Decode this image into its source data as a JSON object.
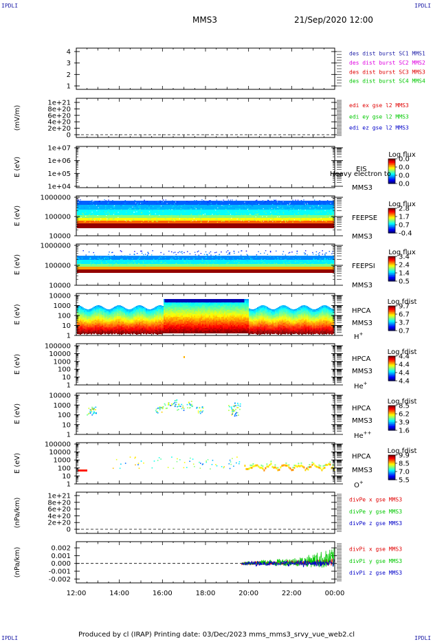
{
  "corner_label": "IPDLI",
  "header": {
    "title": "MMS3",
    "datetime": "21/Sep/2020 12:00"
  },
  "footer": {
    "text": "Produced by cl (IRAP)   Printing date: 03/Dec/2023   mms_mms3_srvy_vue_web2.cl"
  },
  "colors": {
    "red": "#e00000",
    "green": "#00c800",
    "blue": "#0000c8",
    "magenta": "#e000e0",
    "darkblue": "#2020c0"
  },
  "chart_data": [
    {
      "type": "line",
      "panel": "tetrahedron",
      "y_ticks": [
        "1",
        "2",
        "3",
        "4"
      ],
      "ylim": [
        0.7,
        4.3
      ],
      "series": [
        {
          "name": "des dist burst SC1 MMS1",
          "color": "#1a1aa6",
          "values": []
        },
        {
          "name": "des dist burst SC2 MMS2",
          "color": "#e000e0",
          "values": []
        },
        {
          "name": "des dist burst SC3 MMS3",
          "color": "#e00000",
          "values": []
        },
        {
          "name": "des dist burst SC4 MMS4",
          "color": "#00c800",
          "values": []
        }
      ]
    },
    {
      "type": "line",
      "panel": "electric-field",
      "ylabel": "(mV/m)",
      "y_ticks": [
        "1e+21",
        "8e+20",
        "6e+20",
        "4e+20",
        "2e+20",
        "0"
      ],
      "series": [
        {
          "name": "edi ex gse l2 MMS3",
          "color": "#e00000",
          "values": []
        },
        {
          "name": "edi ey gse l2 MMS3",
          "color": "#00c800",
          "values": []
        },
        {
          "name": "edi ez gse l2 MMS3",
          "color": "#0000c8",
          "values": []
        }
      ]
    },
    {
      "type": "heatmap",
      "panel": "EIS",
      "ylabel": "E (eV)",
      "yscale": "log",
      "y_ticks": [
        "1e+07",
        "1e+06",
        "1e+05",
        "1e+04"
      ],
      "right_labels": [
        "EIS",
        "MMS3"
      ],
      "overlay_label": "Heavy electron to",
      "colorbar": {
        "title": "Log flux",
        "ticks": [
          "0.0",
          "0.0",
          "0.0",
          "0.0"
        ]
      }
    },
    {
      "type": "heatmap",
      "panel": "FEEPSE",
      "ylabel": "E (eV)",
      "yscale": "log",
      "y_ticks": [
        "1000000",
        "100000",
        "10000"
      ],
      "right_labels": [
        "FEEPSE",
        "MMS3"
      ],
      "colorbar": {
        "title": "Log flux",
        "ticks": [
          "2.8",
          "1.7",
          "0.7",
          "-0.4"
        ]
      }
    },
    {
      "type": "heatmap",
      "panel": "FEEPSI",
      "ylabel": "E (eV)",
      "yscale": "log",
      "y_ticks": [
        "1000000",
        "100000",
        "10000"
      ],
      "right_labels": [
        "FEEPSI",
        "MMS3"
      ],
      "colorbar": {
        "title": "Log flux",
        "ticks": [
          "3.4",
          "2.4",
          "1.4",
          "0.5"
        ]
      }
    },
    {
      "type": "heatmap",
      "panel": "HPCA-H+",
      "ylabel": "E (eV)",
      "yscale": "log",
      "y_ticks": [
        "10000",
        "1000",
        "100",
        "10",
        "1"
      ],
      "right_labels": [
        "HPCA",
        "MMS3"
      ],
      "species": "H",
      "species_sup": "+",
      "colorbar": {
        "title": "Log fdist",
        "ticks": [
          "9.7",
          "6.7",
          "3.7",
          "0.7"
        ]
      }
    },
    {
      "type": "heatmap",
      "panel": "HPCA-He+",
      "ylabel": "E (eV)",
      "yscale": "log",
      "y_ticks": [
        "100000",
        "10000",
        "1000",
        "100",
        "10",
        "1"
      ],
      "right_labels": [
        "HPCA",
        "MMS3"
      ],
      "species": "He",
      "species_sup": "+",
      "colorbar": {
        "title": "Log fdist",
        "ticks": [
          "4.4",
          "4.4",
          "4.4",
          "4.4"
        ]
      }
    },
    {
      "type": "heatmap",
      "panel": "HPCA-He++",
      "ylabel": "E (eV)",
      "yscale": "log",
      "y_ticks": [
        "10000",
        "1000",
        "100",
        "10",
        "1"
      ],
      "right_labels": [
        "HPCA",
        "MMS3"
      ],
      "species": "He",
      "species_sup": "++",
      "colorbar": {
        "title": "Log fdist",
        "ticks": [
          "8.5",
          "6.2",
          "3.9",
          "1.6"
        ]
      }
    },
    {
      "type": "heatmap",
      "panel": "HPCA-O+",
      "ylabel": "E (eV)",
      "yscale": "log",
      "y_ticks": [
        "100000",
        "10000",
        "1000",
        "100",
        "10",
        "1"
      ],
      "right_labels": [
        "HPCA",
        "MMS3"
      ],
      "species": "O",
      "species_sup": "+",
      "colorbar": {
        "title": "Log fdist",
        "ticks": [
          "9.9",
          "8.5",
          "7.0",
          "5.5"
        ]
      }
    },
    {
      "type": "line",
      "panel": "divPe",
      "ylabel": "(nPa/km)",
      "y_ticks": [
        "1e+21",
        "8e+20",
        "6e+20",
        "4e+20",
        "2e+20",
        "0"
      ],
      "series": [
        {
          "name": "divPe x gse MMS3",
          "color": "#e00000",
          "values": []
        },
        {
          "name": "divPe y gse MMS3",
          "color": "#00c800",
          "values": []
        },
        {
          "name": "divPe z gse MMS3",
          "color": "#0000c8",
          "values": []
        }
      ]
    },
    {
      "type": "line",
      "panel": "divPi",
      "ylabel": "(nPa/km)",
      "y_ticks": [
        "0.002",
        "0.001",
        "0.000",
        "-0.001",
        "-0.002"
      ],
      "ylim": [
        -0.0025,
        0.0028
      ],
      "x_ticks": [
        "12:00",
        "14:00",
        "16:00",
        "18:00",
        "20:00",
        "22:00",
        "00:00"
      ],
      "data_start": "19:40",
      "series": [
        {
          "name": "divPi x gse MMS3",
          "color": "#e00000",
          "values": [
            0.0,
            0.0002,
            0.0001,
            0.0003,
            0.0002,
            0.0004,
            0.0006
          ]
        },
        {
          "name": "divPi y gse MMS3",
          "color": "#00c800",
          "values": [
            0.0,
            0.0003,
            0.0004,
            0.0006,
            0.0008,
            0.0015,
            0.002
          ]
        },
        {
          "name": "divPi z gse MMS3",
          "color": "#0000c8",
          "values": [
            0.0,
            -0.0002,
            0.0003,
            -0.0003,
            0.0004,
            -0.0004,
            0.0005
          ]
        }
      ]
    }
  ]
}
